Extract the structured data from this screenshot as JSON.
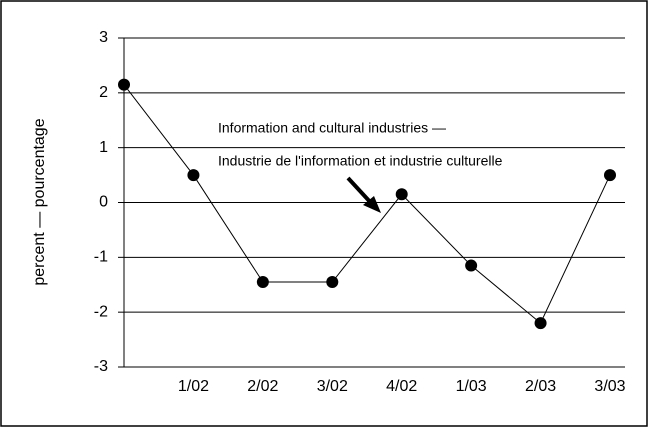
{
  "chart_data": {
    "type": "line",
    "y_label": "percent — pourcentage",
    "annotation": [
      "Information and cultural industries —",
      "Industrie de l'information et industrie culturelle"
    ],
    "categories": [
      null,
      "1/02",
      "2/02",
      "3/02",
      "4/02",
      "1/03",
      "2/03",
      "3/03"
    ],
    "series": [
      {
        "name": "Information and cultural industries",
        "color": "#000000",
        "values": [
          2.15,
          0.5,
          -1.45,
          -1.45,
          0.15,
          -1.15,
          -2.2,
          0.5
        ]
      }
    ],
    "ylim": [
      -3,
      3
    ],
    "yticks": [
      -3,
      -2,
      -1,
      0,
      1,
      2,
      3
    ],
    "grid": true
  }
}
